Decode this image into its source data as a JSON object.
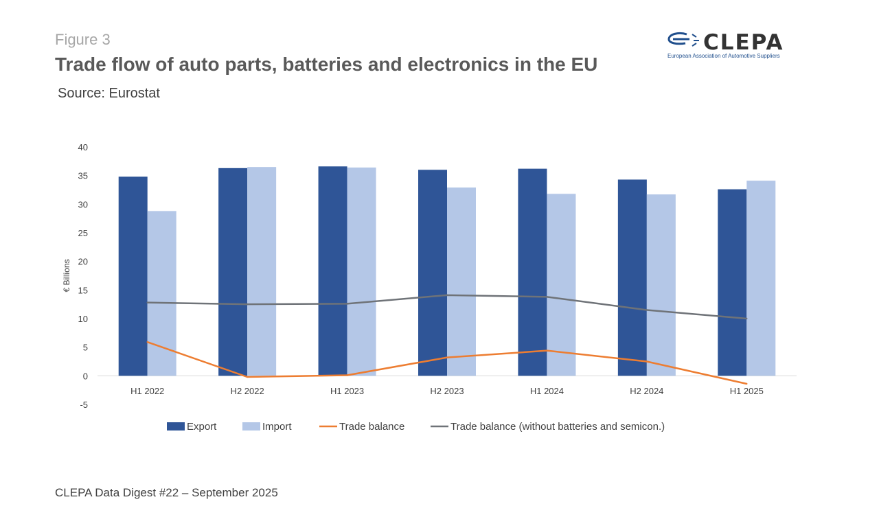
{
  "figure_label": "Figure 3",
  "title": "Trade flow of auto parts, batteries and electronics in the EU",
  "subtitle": "Source: Eurostat",
  "logo": {
    "name": "CLEPA",
    "tagline": "European Association of Automotive Suppliers",
    "icon": "clepa-swoosh-icon",
    "color": "#1f4e8c"
  },
  "footer": "CLEPA Data Digest #22 – September 2025",
  "chart_data": {
    "type": "bar",
    "categories": [
      "H1 2022",
      "H2 2022",
      "H1 2023",
      "H2 2023",
      "H1 2024",
      "H2 2024",
      "H1 2025"
    ],
    "ylabel": "€ Billions",
    "ylim": [
      -5,
      40
    ],
    "yticks": [
      40,
      35,
      30,
      25,
      20,
      15,
      10,
      5,
      0,
      -5
    ],
    "grid": false,
    "legend": "bottom",
    "series": [
      {
        "name": "Export",
        "kind": "bar",
        "color": "#2f5597",
        "values": [
          34.8,
          36.3,
          36.6,
          36.0,
          36.2,
          34.3,
          32.6
        ]
      },
      {
        "name": "Import",
        "kind": "bar",
        "color": "#b4c7e7",
        "values": [
          28.8,
          36.5,
          36.4,
          32.9,
          31.8,
          31.7,
          34.1
        ]
      },
      {
        "name": "Trade balance",
        "kind": "line",
        "color": "#ed7d31",
        "values": [
          5.9,
          -0.2,
          0.1,
          3.2,
          4.4,
          2.5,
          -1.4
        ]
      },
      {
        "name": "Trade balance (without batteries and semicon.)",
        "kind": "line",
        "color": "#6f7378",
        "values": [
          12.8,
          12.5,
          12.6,
          14.1,
          13.8,
          11.5,
          10.0
        ]
      }
    ]
  }
}
